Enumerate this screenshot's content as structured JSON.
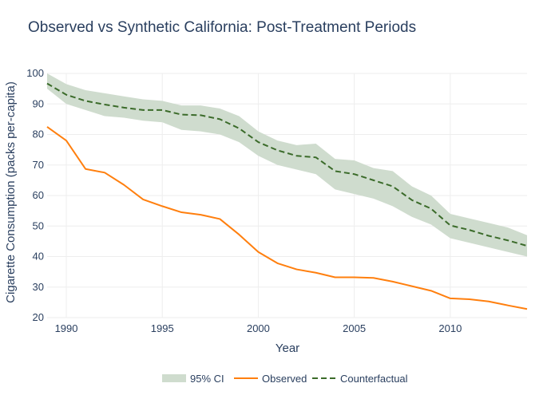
{
  "colors": {
    "observed": "#ff7f0e",
    "counterfactual": "#3b6b2a",
    "ci_fill": "#cfdcce",
    "grid": "#eeeeee",
    "text": "#2a3f5f"
  },
  "chart_data": {
    "type": "line",
    "title": "Observed vs Synthetic California: Post-Treatment Periods",
    "xlabel": "Year",
    "ylabel": "Cigarette Consumption (packs per-capita)",
    "xlim": [
      1989,
      2014
    ],
    "ylim": [
      20,
      100
    ],
    "x_ticks": [
      1990,
      1995,
      2000,
      2005,
      2010
    ],
    "y_ticks": [
      20,
      30,
      40,
      50,
      60,
      70,
      80,
      90,
      100
    ],
    "grid": true,
    "legend_position": "bottom-center",
    "x": [
      1989,
      1990,
      1991,
      1992,
      1993,
      1994,
      1995,
      1996,
      1997,
      1998,
      1999,
      2000,
      2001,
      2002,
      2003,
      2004,
      2005,
      2006,
      2007,
      2008,
      2009,
      2010,
      2011,
      2012,
      2013,
      2014
    ],
    "series": [
      {
        "name": "95% CI",
        "kind": "band",
        "upper": [
          100.0,
          96.5,
          94.5,
          93.5,
          92.5,
          91.5,
          91.0,
          89.5,
          89.5,
          88.5,
          86.0,
          81.0,
          78.0,
          76.5,
          77.0,
          72.0,
          71.5,
          69.0,
          68.0,
          63.0,
          60.0,
          54.0,
          52.5,
          51.0,
          49.5,
          47.0
        ],
        "lower": [
          95.0,
          90.0,
          88.0,
          86.0,
          85.5,
          84.5,
          84.0,
          81.5,
          81.0,
          80.0,
          77.5,
          73.0,
          70.0,
          68.5,
          67.0,
          62.0,
          60.5,
          59.0,
          56.5,
          53.0,
          50.5,
          46.0,
          44.5,
          43.0,
          41.5,
          40.0
        ]
      },
      {
        "name": "Observed",
        "kind": "line",
        "values": [
          82.5,
          78.0,
          68.7,
          67.5,
          63.5,
          58.7,
          56.5,
          54.5,
          53.7,
          52.3,
          47.2,
          41.5,
          37.8,
          35.8,
          34.7,
          33.2,
          33.2,
          33.0,
          31.8,
          30.3,
          28.8,
          26.3,
          26.0,
          25.3,
          24.0,
          22.8
        ]
      },
      {
        "name": "Counterfactual",
        "kind": "dashed-line",
        "values": [
          96.7,
          93.0,
          91.0,
          89.8,
          88.8,
          88.0,
          88.0,
          86.5,
          86.3,
          85.0,
          82.0,
          77.5,
          74.8,
          73.0,
          72.5,
          68.0,
          67.0,
          65.0,
          63.0,
          58.5,
          55.7,
          50.2,
          48.7,
          46.8,
          45.3,
          43.5
        ]
      }
    ]
  }
}
